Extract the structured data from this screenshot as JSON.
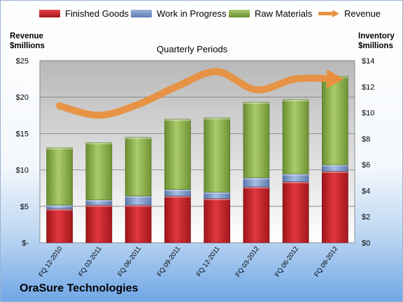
{
  "legend": {
    "finished": "Finished Goods",
    "wip": "Work in Progress",
    "raw": "Raw Materials",
    "revenue": "Revenue"
  },
  "axis": {
    "left_title_1": "Revenue",
    "left_title_2": "$millions",
    "right_title_1": "Inventory",
    "right_title_2": "$millions"
  },
  "company": "OraSure Technologies",
  "colors": {
    "finished": "#cc2026",
    "wip": "#7a97c8",
    "raw": "#8bb14a",
    "revenue": "#e8903e"
  },
  "chart_data": {
    "type": "bar",
    "stacked": true,
    "title": "Quarterly Periods",
    "categories": [
      "FQ 12-2010",
      "FQ 03-2011",
      "FQ 06-2011",
      "FQ 09-2011",
      "FQ 12-2011",
      "FQ 03-2012",
      "FQ 06-2012",
      "FQ 09-2012"
    ],
    "series": [
      {
        "name": "Finished Goods",
        "axis": "right",
        "values": [
          2.6,
          2.9,
          2.9,
          3.6,
          3.4,
          4.3,
          4.7,
          5.5
        ]
      },
      {
        "name": "Work in Progress",
        "axis": "right",
        "values": [
          0.3,
          0.4,
          0.7,
          0.5,
          0.5,
          0.7,
          0.6,
          0.5
        ]
      },
      {
        "name": "Raw Materials",
        "axis": "right",
        "values": [
          4.4,
          4.4,
          4.5,
          5.4,
          5.7,
          5.8,
          5.7,
          6.8
        ]
      },
      {
        "name": "Revenue",
        "axis": "left",
        "type": "line",
        "values": [
          18.8,
          17.5,
          19.0,
          21.5,
          23.5,
          21.0,
          22.5,
          22.5
        ]
      }
    ],
    "left_axis": {
      "ylim": [
        0,
        25
      ],
      "ticks": [
        "$-",
        "$5",
        "$10",
        "$15",
        "$20",
        "$25"
      ]
    },
    "right_axis": {
      "ylim": [
        0,
        14
      ],
      "ticks": [
        "$0",
        "$2",
        "$4",
        "$6",
        "$8",
        "$10",
        "$12",
        "$14"
      ]
    },
    "legend_position": "top",
    "grid": true
  }
}
